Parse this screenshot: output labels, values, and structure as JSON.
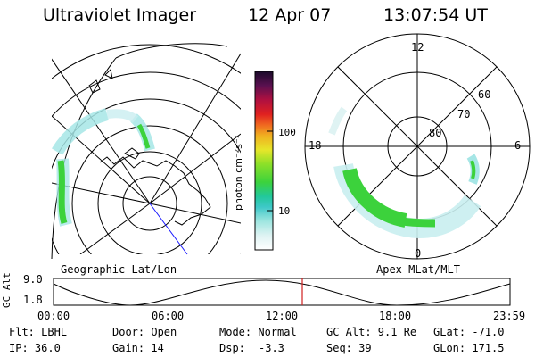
{
  "header": {
    "title": "Ultraviolet Imager",
    "date": "12 Apr 07",
    "time": "13:07:54 UT"
  },
  "geo_panel": {
    "label": "Geographic Lat/Lon"
  },
  "mag_panel": {
    "label": "Apex MLat/MLT",
    "mlt_labels": {
      "top": "12",
      "left": "18",
      "right": "6",
      "bottom": "0"
    },
    "lat_labels": [
      "60",
      "70",
      "80"
    ]
  },
  "colorbar": {
    "unit": "photon cm⁻²s⁻¹",
    "ticks": [
      "100",
      "10"
    ],
    "scale": "log"
  },
  "altitude": {
    "label": "GC Alt",
    "ymax": "9.0",
    "ymin": "1.8",
    "x_ticks": [
      "00:00",
      "06:00",
      "12:00",
      "18:00",
      "23:59"
    ],
    "current_marker_ut": "13:07"
  },
  "info": {
    "filter": "Flt: LBHL",
    "door": "Door: Open",
    "mode": "Mode: Normal",
    "gc_alt": "GC Alt: 9.1 Re",
    "glat": "GLat: -71.0",
    "ip": "IP: 36.0",
    "gain": "Gain: 14",
    "dsp_label": "Dsp:",
    "dsp_value": "-3.3",
    "seq": "Seq: 39",
    "glon": "GLon: 171.5"
  },
  "colors": {
    "aurora_strong": "#3cd23c",
    "aurora_weak": "#a6e6e6",
    "marker": "#d02020",
    "track": "#000000"
  }
}
